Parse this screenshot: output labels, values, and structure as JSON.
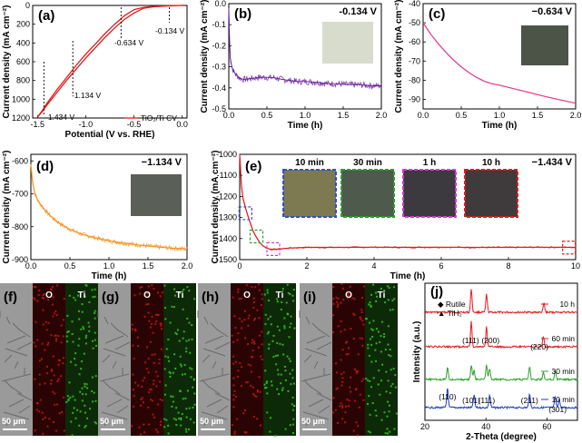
{
  "chart_data": [
    {
      "panel": "(a)",
      "type": "line",
      "xlabel": "Potential (V vs. RHE)",
      "ylabel": "Current density (mA cm⁻²)",
      "xlim": [
        -1.55,
        0.05
      ],
      "ylim": [
        -1200,
        0
      ],
      "xticks": [
        "-1.5",
        "-1.0",
        "-0.5",
        "0.0"
      ],
      "yticks": [
        "0",
        "200",
        "400",
        "600",
        "800",
        "1000",
        "1200"
      ],
      "legend": "TiO₂/Ti CV",
      "annotations": [
        "-0.134 V",
        "-0.634 V",
        "-1.134 V",
        "-1.434 V"
      ],
      "series": [
        {
          "name": "TiO₂/Ti CV",
          "color": "#e41a1c",
          "x": [
            -1.5,
            -1.45,
            -1.4,
            -1.3,
            -1.2,
            -1.1,
            -1.0,
            -0.9,
            -0.8,
            -0.7,
            -0.6,
            -0.5,
            -0.4,
            -0.3,
            -0.2,
            -0.1,
            0.0,
            -0.1,
            -0.2,
            -0.3,
            -0.4,
            -0.5,
            -0.6,
            -0.7,
            -0.8,
            -0.9,
            -1.0,
            -1.1,
            -1.2,
            -1.3,
            -1.4,
            -1.45,
            -1.5
          ],
          "y": [
            -1190,
            -1120,
            -1040,
            -900,
            -770,
            -640,
            -520,
            -410,
            -300,
            -200,
            -110,
            -45,
            -20,
            -10,
            -5,
            -2,
            0,
            -3,
            -8,
            -15,
            -30,
            -80,
            -150,
            -240,
            -340,
            -450,
            -560,
            -680,
            -800,
            -930,
            -1060,
            -1130,
            -1190
          ]
        }
      ]
    },
    {
      "panel": "(b)",
      "type": "line",
      "title": "-0.134 V",
      "xlabel": "Time (h)",
      "ylabel": "Current density (mA cm⁻²)",
      "xlim": [
        0,
        2
      ],
      "ylim": [
        -0.5,
        0
      ],
      "xticks": [
        "0.0",
        "0.5",
        "1.0",
        "1.5",
        "2.0"
      ],
      "yticks": [
        "0.0",
        "-0.1",
        "-0.2",
        "-0.3",
        "-0.4",
        "-0.5"
      ],
      "series": [
        {
          "color": "#6a1b9a",
          "x": [
            0,
            0.01,
            0.02,
            0.04,
            0.06,
            0.1,
            0.15,
            0.2,
            0.3,
            0.4,
            0.5,
            0.6,
            0.7,
            0.8,
            0.9,
            1.0,
            1.1,
            1.2,
            1.3,
            1.4,
            1.5,
            1.6,
            1.7,
            1.8,
            1.9,
            2.0
          ],
          "y": [
            -0.02,
            -0.18,
            -0.26,
            -0.3,
            -0.32,
            -0.34,
            -0.355,
            -0.36,
            -0.355,
            -0.35,
            -0.35,
            -0.352,
            -0.36,
            -0.365,
            -0.37,
            -0.37,
            -0.372,
            -0.375,
            -0.38,
            -0.38,
            -0.383,
            -0.385,
            -0.385,
            -0.388,
            -0.39,
            -0.39
          ]
        }
      ]
    },
    {
      "panel": "(c)",
      "type": "line",
      "title": "−0.634 V",
      "xlabel": "Time (h)",
      "ylabel": "Current density (mA cm⁻²)",
      "xlim": [
        0,
        2
      ],
      "ylim": [
        -95,
        -40
      ],
      "xticks": [
        "0.0",
        "0.5",
        "1.0",
        "1.5",
        "2.0"
      ],
      "yticks": [
        "-40",
        "-50",
        "-60",
        "-70",
        "-80",
        "-90"
      ],
      "series": [
        {
          "color": "#e6318a",
          "x": [
            0,
            0.05,
            0.1,
            0.2,
            0.3,
            0.4,
            0.5,
            0.6,
            0.7,
            0.8,
            0.9,
            1.0,
            1.2,
            1.4,
            1.6,
            1.8,
            2.0
          ],
          "y": [
            -50,
            -53,
            -56,
            -61,
            -65.5,
            -69.5,
            -73,
            -76,
            -78.5,
            -80.5,
            -81.8,
            -82.6,
            -84.5,
            -86.5,
            -88.5,
            -90.3,
            -92
          ]
        }
      ]
    },
    {
      "panel": "(d)",
      "type": "line",
      "title": "−1.134 V",
      "xlabel": "Time (h)",
      "ylabel": "Current density (mA cm⁻²)",
      "xlim": [
        0,
        2
      ],
      "ylim": [
        -900,
        -580
      ],
      "xticks": [
        "0.0",
        "0.5",
        "1.0",
        "1.5",
        "2.0"
      ],
      "yticks": [
        "-600",
        "-700",
        "-800",
        "-900"
      ],
      "series": [
        {
          "color": "#f7941d",
          "x": [
            0,
            0.02,
            0.05,
            0.1,
            0.2,
            0.3,
            0.4,
            0.5,
            0.6,
            0.7,
            0.8,
            0.9,
            1.0,
            1.2,
            1.4,
            1.6,
            1.8,
            2.0
          ],
          "y": [
            -610,
            -660,
            -700,
            -725,
            -755,
            -778,
            -795,
            -808,
            -818,
            -826,
            -832,
            -838,
            -843,
            -850,
            -856,
            -861,
            -865,
            -868
          ]
        }
      ]
    },
    {
      "panel": "(e)",
      "type": "line",
      "title": "−1.434 V",
      "xlabel": "Time (h)",
      "ylabel": "Current density (mA cm⁻²)",
      "xlim": [
        0,
        10
      ],
      "ylim": [
        -1500,
        -1000
      ],
      "xticks": [
        "0",
        "2",
        "4",
        "6",
        "8",
        "10"
      ],
      "yticks": [
        "-1000",
        "-1100",
        "-1200",
        "-1300",
        "-1400",
        "-1500"
      ],
      "inset_labels": [
        "10 min",
        "30 min",
        "1 h",
        "10 h"
      ],
      "series": [
        {
          "color": "#e41a1c",
          "x": [
            0,
            0.05,
            0.1,
            0.2,
            0.3,
            0.4,
            0.5,
            0.6,
            0.7,
            0.8,
            0.9,
            1.0,
            1.5,
            2,
            3,
            4,
            5,
            6,
            7,
            8,
            9,
            10
          ],
          "y": [
            -1000,
            -1150,
            -1210,
            -1270,
            -1320,
            -1365,
            -1395,
            -1420,
            -1435,
            -1445,
            -1450,
            -1452,
            -1445,
            -1442,
            -1442,
            -1441,
            -1442,
            -1441,
            -1442,
            -1442,
            -1441,
            -1442
          ]
        }
      ]
    },
    {
      "panel": "(j)",
      "type": "line",
      "xlabel": "2-Theta (degree)",
      "ylabel": "Intensity (a.u.)",
      "xlim": [
        20,
        70
      ],
      "xticks": [
        "20",
        "40",
        "60"
      ],
      "legend": [
        "Rutile",
        "TiH₂"
      ],
      "peak_labels": [
        "(110)",
        "(101)",
        "(111)",
        "(211)",
        "(301)",
        "(111)",
        "(200)",
        "(220)"
      ],
      "series": [
        {
          "name": "10 h",
          "color": "#e41a1c"
        },
        {
          "name": "60 min",
          "color": "#e41a1c"
        },
        {
          "name": "30 min",
          "color": "#2ca02c"
        },
        {
          "name": "10 min",
          "color": "#1f3fbf"
        }
      ]
    }
  ],
  "panels": {
    "a": {
      "label": "(a)"
    },
    "b": {
      "label": "(b)"
    },
    "c": {
      "label": "(c)"
    },
    "d": {
      "label": "(d)"
    },
    "e": {
      "label": "(e)"
    },
    "f": {
      "label": "(f)"
    },
    "g": {
      "label": "(g)"
    },
    "h": {
      "label": "(h)"
    },
    "i": {
      "label": "(i)"
    },
    "j": {
      "label": "(j)"
    }
  },
  "eds": {
    "o_label": "O",
    "ti_label": "Ti",
    "scale_bar": "50 μm"
  }
}
